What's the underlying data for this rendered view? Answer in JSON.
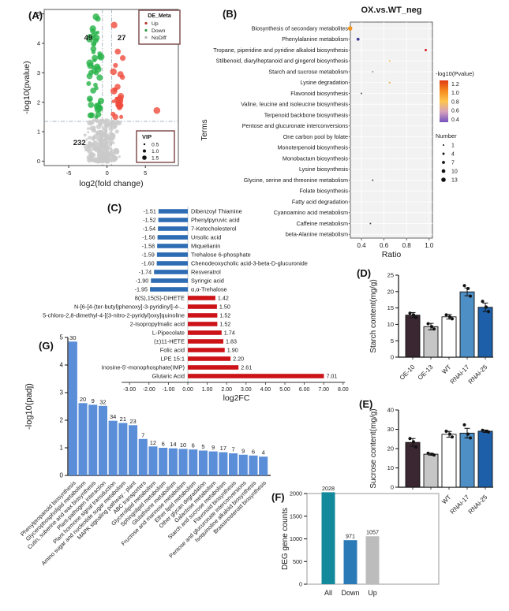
{
  "panel_labels": {
    "a": "(A)",
    "b": "(B)",
    "c": "(C)",
    "d": "(D)",
    "e": "(E)",
    "f": "(F)",
    "g": "(G)"
  },
  "chart_data": [
    {
      "id": "A",
      "type": "scatter",
      "xlabel": "log2(fold change)",
      "ylabel": "-log10(pvalue)",
      "xticks": [
        -5,
        0,
        5
      ],
      "yticks": [
        0,
        1,
        2,
        3,
        4,
        5
      ],
      "xlim": [
        -8.2,
        9.3
      ],
      "ylim": [
        -0.15,
        5.15
      ],
      "legend_title": "DE_Meta",
      "legend_items": [
        {
          "label": "Up",
          "color": "#b03a2e"
        },
        {
          "label": "Down",
          "color": "#2e9e44"
        },
        {
          "label": "NoDiff",
          "color": "#b0b0b0"
        }
      ],
      "size_legend_title": "VIP",
      "size_legend_items": [
        "0.5",
        "1.0",
        "1.5"
      ],
      "counts": {
        "up": 27,
        "down": 49,
        "nodiff": 232
      },
      "count_labels": [
        {
          "text": "49",
          "x": -2.45,
          "y": 4.1
        },
        {
          "text": "27",
          "x": 1.9,
          "y": 4.1
        },
        {
          "text": "232",
          "x": -3.6,
          "y": 0.55
        }
      ],
      "colors": {
        "up": "#ef4b3c",
        "down": "#27b348",
        "nodiff": "#c9c9c9"
      },
      "vlines": [
        -0.6,
        0.6
      ],
      "hline": 1.35,
      "up_fixed": [
        [
          0.92,
          4.62,
          4.2
        ],
        [
          6.5,
          1.72,
          4.3
        ],
        [
          1.4,
          3.72,
          3.8
        ],
        [
          2.05,
          3.5,
          3.6
        ],
        [
          1.75,
          2.95,
          4.0
        ]
      ],
      "down_fixed": [
        [
          -1.45,
          4.9,
          4.2
        ],
        [
          -1.2,
          4.83,
          3.6
        ],
        [
          -1.6,
          3.5,
          4.0
        ],
        [
          -1.3,
          3.2,
          4.2
        ],
        [
          -2.1,
          3.0,
          3.4
        ]
      ]
    },
    {
      "id": "B",
      "type": "scatter",
      "title": "OX.vs.WT_neg",
      "xlabel": "Ratio",
      "ylabel": "Terms",
      "xticks": [
        0.4,
        0.6,
        0.8,
        1.0
      ],
      "terms": [
        "Biosynthesis of secondary metabolites",
        "Phenylalanine metabolism",
        "Tropane, piperidine and pyridine alkaloid biosynthesis",
        "Stilbenoid, diarylheptanoid and gingerol biosynthesis",
        "Starch and sucrose metabolism",
        "Lysine degradation",
        "Flavonoid biosynthesis",
        "Valine, leucine and isoleucine biosynthesis",
        "Terpenoid backbone biosynthesis",
        "Pentose and glucuronate interconversions",
        "One carbon pool by folate",
        "Monoterpenoid biosynthesis",
        "Monobactam biosynthesis",
        "Lysine biosynthesis",
        "Glycine, serine and threonine metabolism",
        "Folate biosynthesis",
        "Fatty acid degradation",
        "Cyanoamino acid metabolism",
        "Caffeine metabolism",
        "beta-Alanine metabolism"
      ],
      "highlight_index": 4,
      "highlight_color": "#55a868",
      "dots": [
        {
          "term": 0,
          "ratio": 0.3,
          "number": 13,
          "color": "#f0941c"
        },
        {
          "term": 1,
          "ratio": 0.37,
          "number": 7,
          "color": "#3f3d99"
        },
        {
          "term": 2,
          "ratio": 0.97,
          "number": 4,
          "color": "#d7191c"
        },
        {
          "term": 3,
          "ratio": 0.65,
          "number": 1,
          "color": "#f6c54a"
        },
        {
          "term": 4,
          "ratio": 0.5,
          "number": 1,
          "color": "#9c8fae"
        },
        {
          "term": 5,
          "ratio": 0.65,
          "number": 1,
          "color": "#f2a93b"
        },
        {
          "term": 6,
          "ratio": 0.4,
          "number": 1,
          "color": "#5a5a6e"
        },
        {
          "term": 14,
          "ratio": 0.5,
          "number": 1,
          "color": "#4a4a58"
        },
        {
          "term": 18,
          "ratio": 0.48,
          "number": 1,
          "color": "#4a4a58"
        }
      ],
      "color_legend_title": "-log10(Pvalue)",
      "color_ticks": [
        "1.2",
        "1.0",
        "0.8",
        "0.6",
        "0.4"
      ],
      "color_stops": [
        "#e03a12",
        "#f68b1f",
        "#fdc54e",
        "#d5a0bd",
        "#7452be"
      ],
      "size_legend_title": "Number",
      "size_ticks": [
        1,
        4,
        7,
        10,
        13
      ]
    },
    {
      "id": "C",
      "type": "bar",
      "xlabel": "log2FC",
      "xticks": [
        "-3.00",
        "-2.00",
        "-1.00",
        "0.00",
        "1.00",
        "2.00",
        "3.00",
        "4.00",
        "5.00",
        "6.00",
        "7.00",
        "8.00"
      ],
      "neg_color": "#2e6db4",
      "pos_color": "#cc1418",
      "highlight_color": "#6fb35f",
      "items": [
        {
          "label": "Dibenzoyl Thiamine",
          "value": -1.51
        },
        {
          "label": "Phenylpyruvic acid",
          "value": -1.52
        },
        {
          "label": "7-Ketocholesterol",
          "value": -1.54
        },
        {
          "label": "Ursolic acid",
          "value": -1.56
        },
        {
          "label": "Miquelianin",
          "value": -1.58
        },
        {
          "label": "Trehalose 6-phosphate",
          "value": -1.59,
          "highlight": true
        },
        {
          "label": "Chenodeoxycholic acid-3-beta-D-glucuronide",
          "value": -1.6
        },
        {
          "label": "Resveratrol",
          "value": -1.74
        },
        {
          "label": "Syringic acid",
          "value": -1.9
        },
        {
          "label": "α,α-Trehalose",
          "value": -1.95,
          "highlight": true
        },
        {
          "label": "8(S),15(S)-DiHETE",
          "value": 1.42
        },
        {
          "label": "N-[6-[4-(ter-butyl)phenoxy]-3-pyridinyl]-4-...",
          "value": 1.5
        },
        {
          "label": "5-chloro-2,8-dimethyl-4-[(3-nitro-2-pyridyl)oxy]quinoline",
          "value": 1.52
        },
        {
          "label": "2-Isopropylmalic acid",
          "value": 1.52
        },
        {
          "label": "L-Pipecolate",
          "value": 1.74
        },
        {
          "label": "(±)11-HETE",
          "value": 1.83
        },
        {
          "label": "Folic acid",
          "value": 1.9
        },
        {
          "label": "LPE 15:1",
          "value": 2.2
        },
        {
          "label": "Inosine-5'-monophosphate(IMP)",
          "value": 2.61
        },
        {
          "label": "Glutaric Acid",
          "value": 7.01
        }
      ]
    },
    {
      "id": "D",
      "type": "bar",
      "ylabel": "Starch content(mg/g)",
      "categories": [
        "OE-10",
        "OE-13",
        "WT",
        "RNAi-17",
        "RNAi-25"
      ],
      "values": [
        12.8,
        9.3,
        12.3,
        19.9,
        15.2
      ],
      "errors": [
        0.8,
        1.0,
        0.7,
        1.2,
        1.3
      ],
      "points": [
        [
          13.4,
          12.9,
          12.1
        ],
        [
          10.2,
          9.3,
          8.6
        ],
        [
          12.9,
          12.3,
          11.7
        ],
        [
          21.8,
          20.9,
          18.6
        ],
        [
          17.0,
          15.3,
          13.9
        ]
      ],
      "ylim": [
        0,
        25
      ],
      "yticks": [
        0,
        5,
        10,
        15,
        20,
        25
      ],
      "colors": [
        "#3a2731",
        "#c6c6c6",
        "#ffffff",
        "#4e8fc6",
        "#1d5fa9"
      ]
    },
    {
      "id": "E",
      "type": "bar",
      "ylabel": "Sucrose content(mg/g)",
      "categories": [
        "OE-10",
        "OE-13",
        "WT",
        "RNAi-17",
        "RNAi-25"
      ],
      "values": [
        23.2,
        17.1,
        27.4,
        28.0,
        29.0
      ],
      "errors": [
        2.0,
        0.5,
        1.5,
        2.5,
        0.6
      ],
      "points": [
        [
          25.2,
          23.5,
          20.8
        ],
        [
          17.6,
          17.1,
          16.7
        ],
        [
          29.0,
          27.5,
          26.0
        ],
        [
          32.3,
          27.5,
          25.5
        ],
        [
          29.5,
          29.0,
          28.6
        ]
      ],
      "ylim": [
        0,
        40
      ],
      "yticks": [
        0,
        10,
        20,
        30,
        40
      ],
      "colors": [
        "#3a2731",
        "#c6c6c6",
        "#ffffff",
        "#4e8fc6",
        "#1d5fa9"
      ]
    },
    {
      "id": "F",
      "type": "bar",
      "ylabel": "DEG gene counts",
      "categories": [
        "All",
        "Down",
        "Up"
      ],
      "values": [
        2028,
        971,
        1057
      ],
      "colors": [
        "#13899c",
        "#2b7ab8",
        "#bcbcbc"
      ],
      "ylim": [
        0,
        2000
      ],
      "yticks": [
        0,
        500,
        1000,
        1500,
        2000
      ]
    },
    {
      "id": "G",
      "type": "bar",
      "ylabel": "-log10(padj)",
      "categories": [
        "Phenylpropanoid biosynthesis",
        "Glycerophospholipid metabolism",
        "Cutin, suberine and wax biosynthesis",
        "Plant-pathogen interaction",
        "Plant hormone signal transduction",
        "Amino sugar and nucleotide sugar metabolism",
        "MAPK signaling pathway - plant",
        "ABC transporters",
        "Glycerolipid metabolism",
        "Sphingolipid metabolism",
        "Glutathione metabolism",
        "Fructose and mannose metabolism",
        "Ether lipid metabolism",
        "Other glycan degradation",
        "Galactose metabolism",
        "Starch and sucrose metabolism",
        "Flavonoid biosynthesis",
        "Pentose and glucuronate interconversions",
        "Isoquinoline alkaloid biosynthesis",
        "Brassinosteroid biosynthesis"
      ],
      "counts": [
        30,
        20,
        9,
        32,
        34,
        21,
        23,
        7,
        12,
        6,
        14,
        10,
        6,
        5,
        9,
        17,
        7,
        9,
        6,
        4
      ],
      "values": [
        4.85,
        2.62,
        2.56,
        2.52,
        1.98,
        1.9,
        1.82,
        1.32,
        1.05,
        1.0,
        0.98,
        0.96,
        0.94,
        0.9,
        0.87,
        0.84,
        0.8,
        0.75,
        0.72,
        0.68
      ],
      "ylim": [
        0,
        5
      ],
      "yticks": [
        0,
        1,
        2,
        3,
        4,
        5
      ],
      "bar_color": "#5b8ed9",
      "highlight_index": 15,
      "highlight_color": "#e8392e"
    }
  ]
}
